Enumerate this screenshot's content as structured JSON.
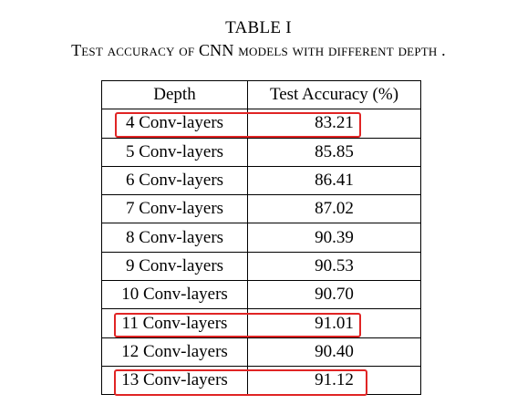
{
  "table": {
    "label": "TABLE I",
    "caption": "Test accuracy of CNN models with different depth .",
    "headers": [
      "Depth",
      "Test Accuracy (%)"
    ],
    "rows": [
      {
        "depth": "4 Conv-layers",
        "accuracy": "83.21",
        "highlighted": true
      },
      {
        "depth": "5 Conv-layers",
        "accuracy": "85.85",
        "highlighted": false
      },
      {
        "depth": "6 Conv-layers",
        "accuracy": "86.41",
        "highlighted": false
      },
      {
        "depth": "7 Conv-layers",
        "accuracy": "87.02",
        "highlighted": false
      },
      {
        "depth": "8 Conv-layers",
        "accuracy": "90.39",
        "highlighted": false
      },
      {
        "depth": "9 Conv-layers",
        "accuracy": "90.53",
        "highlighted": false
      },
      {
        "depth": "10 Conv-layers",
        "accuracy": "90.70",
        "highlighted": false
      },
      {
        "depth": "11 Conv-layers",
        "accuracy": "91.01",
        "highlighted": true
      },
      {
        "depth": "12 Conv-layers",
        "accuracy": "90.40",
        "highlighted": false
      },
      {
        "depth": "13 Conv-layers",
        "accuracy": "91.12",
        "highlighted": true
      }
    ]
  },
  "highlight_color": "#e02424"
}
